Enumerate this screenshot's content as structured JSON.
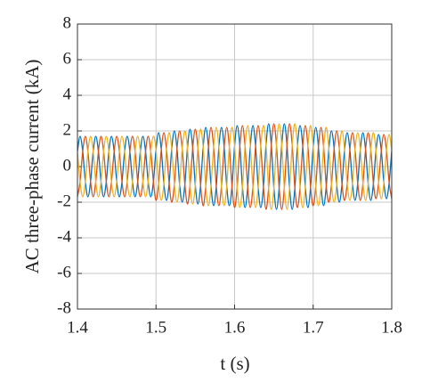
{
  "chart_data": {
    "type": "line",
    "xlabel": "t (s)",
    "ylabel": "AC three-phase current (kA)",
    "xlim": [
      1.4,
      1.8
    ],
    "xticks": [
      1.4,
      1.5,
      1.6,
      1.7,
      1.8
    ],
    "ylim": [
      -8,
      8
    ],
    "yticks": [
      -8,
      -6,
      -4,
      -2,
      0,
      2,
      4,
      6,
      8
    ],
    "grid": true,
    "x": [
      1.4,
      1.4033,
      1.4067,
      1.41,
      1.4133,
      1.4167,
      1.42,
      1.4233,
      1.4267,
      1.43,
      1.4333,
      1.4367,
      1.44,
      1.4433,
      1.4467,
      1.45,
      1.4533,
      1.4567,
      1.46,
      1.4633,
      1.4667,
      1.47,
      1.4733,
      1.4767,
      1.48,
      1.4833,
      1.4867,
      1.49,
      1.4933,
      1.4967,
      1.5,
      1.5033,
      1.5067,
      1.51,
      1.5133,
      1.5167,
      1.52,
      1.5233,
      1.5267,
      1.53,
      1.5333,
      1.5367,
      1.54,
      1.5433,
      1.5467,
      1.55,
      1.5533,
      1.5567,
      1.56,
      1.5633,
      1.5667,
      1.57,
      1.5733,
      1.5767,
      1.58,
      1.5833,
      1.5867,
      1.59,
      1.5933,
      1.5967,
      1.6,
      1.6033,
      1.6067,
      1.61,
      1.6133,
      1.6167,
      1.62,
      1.6233,
      1.6267,
      1.63,
      1.6333,
      1.6367,
      1.64,
      1.6433,
      1.6467,
      1.65,
      1.6533,
      1.6567,
      1.66,
      1.6633,
      1.6667,
      1.67,
      1.6733,
      1.6767,
      1.68,
      1.6833,
      1.6867,
      1.69,
      1.6933,
      1.6967,
      1.7,
      1.7033,
      1.7067,
      1.71,
      1.7133,
      1.7167,
      1.72,
      1.7233,
      1.7267,
      1.73,
      1.7333,
      1.7367,
      1.74,
      1.7433,
      1.7467,
      1.75,
      1.7533,
      1.7567,
      1.76,
      1.7633,
      1.7667,
      1.77,
      1.7733,
      1.7767,
      1.78,
      1.7833,
      1.7867,
      1.79,
      1.7933,
      1.7967,
      1.8
    ],
    "series": [
      {
        "color": "#0072bd",
        "values": [
          0.85,
          1.7,
          0.85,
          -0.85,
          -1.7,
          -0.85,
          0.85,
          1.7,
          0.85,
          -0.85,
          -1.7,
          -0.85,
          0.85,
          1.7,
          0.85,
          -0.85,
          -1.7,
          -0.85,
          0.85,
          1.7,
          0.85,
          -0.85,
          -1.7,
          -0.85,
          0.85,
          1.7,
          0.85,
          -0.85,
          -1.7,
          -0.85,
          0.95,
          1.9,
          0.95,
          -0.95,
          -1.9,
          -0.95,
          1,
          2,
          1,
          -1,
          -2,
          -1,
          1.05,
          2.1,
          1.05,
          -1.05,
          -2.1,
          -1.05,
          1.1,
          2.2,
          1.1,
          -1.1,
          -2.2,
          -1.1,
          1.1,
          2.2,
          1.1,
          -1.1,
          -2.2,
          -1.1,
          1.15,
          2.3,
          1.15,
          -1.15,
          -2.3,
          -1.15,
          1.15,
          2.3,
          1.15,
          -1.15,
          -2.3,
          -1.15,
          1.2,
          2.4,
          1.2,
          -1.2,
          -2.4,
          -1.2,
          1.2,
          2.4,
          1.2,
          -1.2,
          -2.4,
          -1.2,
          1.15,
          2.3,
          1.15,
          -1.15,
          -2.3,
          -1.15,
          1.1,
          2.2,
          1.1,
          -1.1,
          -2.2,
          -1.1,
          1,
          2,
          1,
          -1,
          -2,
          -1,
          0.95,
          1.9,
          0.95,
          -0.95,
          -1.9,
          -0.95,
          0.95,
          1.9,
          0.95,
          -0.95,
          -1.9,
          -0.95,
          0.9,
          1.8,
          0.9,
          -0.9,
          -1.8,
          -0.9,
          0.9
        ]
      },
      {
        "color": "#d95319",
        "values": [
          -1.7,
          -0.85,
          0.85,
          1.7,
          0.85,
          -0.85,
          -1.7,
          -0.85,
          0.85,
          1.7,
          0.85,
          -0.85,
          -1.7,
          -0.85,
          0.85,
          1.7,
          0.85,
          -0.85,
          -1.7,
          -0.85,
          0.85,
          1.7,
          0.85,
          -0.85,
          -1.7,
          -0.85,
          0.85,
          1.7,
          0.85,
          -0.85,
          -1.9,
          -0.95,
          0.95,
          1.9,
          0.95,
          -0.95,
          -2,
          -1,
          1,
          2,
          1,
          -1,
          -2.1,
          -1.05,
          1.05,
          2.1,
          1.05,
          -1.05,
          -2.2,
          -1.1,
          1.1,
          2.2,
          1.1,
          -1.1,
          -2.2,
          -1.1,
          1.1,
          2.2,
          1.1,
          -1.1,
          -2.3,
          -1.15,
          1.15,
          2.3,
          1.15,
          -1.15,
          -2.3,
          -1.15,
          1.15,
          2.3,
          1.15,
          -1.15,
          -2.4,
          -1.2,
          1.2,
          2.4,
          1.2,
          -1.2,
          -2.4,
          -1.2,
          1.2,
          2.4,
          1.2,
          -1.2,
          -2.3,
          -1.15,
          1.15,
          2.3,
          1.15,
          -1.15,
          -2.2,
          -1.1,
          1.1,
          2.2,
          1.1,
          -1.1,
          -2,
          -1,
          1,
          2,
          1,
          -1,
          -1.9,
          -0.95,
          0.95,
          1.9,
          0.95,
          -0.95,
          -1.9,
          -0.95,
          0.95,
          1.9,
          0.95,
          -0.95,
          -1.8,
          -0.9,
          0.9,
          1.8,
          0.9,
          -0.9,
          -1.8
        ]
      },
      {
        "color": "#edb120",
        "values": [
          0.85,
          -0.85,
          -1.7,
          -0.85,
          0.85,
          1.7,
          0.85,
          -0.85,
          -1.7,
          -0.85,
          0.85,
          1.7,
          0.85,
          -0.85,
          -1.7,
          -0.85,
          0.85,
          1.7,
          0.85,
          -0.85,
          -1.7,
          -0.85,
          0.85,
          1.7,
          0.85,
          -0.85,
          -1.7,
          -0.85,
          0.85,
          1.7,
          0.95,
          -0.95,
          -1.9,
          -0.95,
          0.95,
          1.9,
          1,
          -1,
          -2,
          -1,
          1,
          2,
          1.05,
          -1.05,
          -2.1,
          -1.05,
          1.05,
          2.1,
          1.1,
          -1.1,
          -2.2,
          -1.1,
          1.1,
          2.2,
          1.1,
          -1.1,
          -2.2,
          -1.1,
          1.1,
          2.2,
          1.15,
          -1.15,
          -2.3,
          -1.15,
          1.15,
          2.3,
          1.15,
          -1.15,
          -2.3,
          -1.15,
          1.15,
          2.3,
          1.2,
          -1.2,
          -2.4,
          -1.2,
          1.2,
          2.4,
          1.2,
          -1.2,
          -2.4,
          -1.2,
          1.2,
          2.4,
          1.15,
          -1.15,
          -2.3,
          -1.15,
          1.15,
          2.3,
          1.1,
          -1.1,
          -2.2,
          -1.1,
          1.1,
          2.2,
          1,
          -1,
          -2,
          -1,
          1,
          2,
          0.95,
          -0.95,
          -1.9,
          -0.95,
          0.95,
          1.9,
          0.95,
          -0.95,
          -1.9,
          -0.95,
          0.95,
          1.9,
          0.9,
          -0.9,
          -1.8,
          -0.9,
          0.9,
          1.8,
          0.9
        ]
      }
    ]
  }
}
